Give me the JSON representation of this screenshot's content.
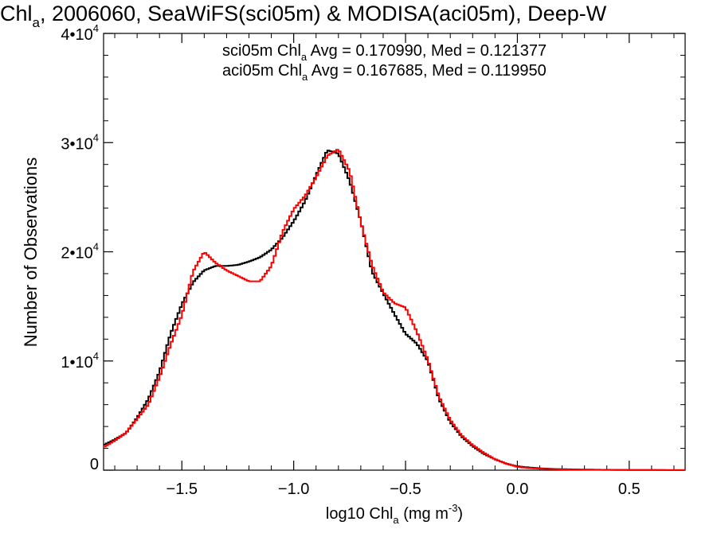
{
  "chart_data": {
    "type": "line",
    "title": {
      "pre": "Chl",
      "sub": "a",
      "post": ", 2006060, SeaWiFS(sci05m) & MODISA(aci05m), Deep-W"
    },
    "xlabel": {
      "pre": "log10 Chl",
      "sub": "a",
      "mid": " (mg m",
      "sup": "-3",
      "post": ")"
    },
    "ylabel": "Number of Observations",
    "xlim": [
      -1.85,
      0.75
    ],
    "ylim": [
      0,
      40000
    ],
    "x_ticks": [
      {
        "value": -1.5,
        "label": "−1.5"
      },
      {
        "value": -1.0,
        "label": "−1.0"
      },
      {
        "value": -0.5,
        "label": "−0.5"
      },
      {
        "value": 0.0,
        "label": "0.0"
      },
      {
        "value": 0.5,
        "label": "0.5"
      }
    ],
    "y_ticks": [
      {
        "value": 0,
        "label": "0",
        "sup": ""
      },
      {
        "value": 10000,
        "label": "1•10",
        "sup": "4"
      },
      {
        "value": 20000,
        "label": "2•10",
        "sup": "4"
      },
      {
        "value": 30000,
        "label": "3•10",
        "sup": "4"
      },
      {
        "value": 40000,
        "label": "4•10",
        "sup": "4"
      }
    ],
    "annotations": [
      {
        "pre": "sci05m Chl",
        "sub": "a",
        "post": " Avg = 0.170990, Med = 0.121377",
        "color": "#000000"
      },
      {
        "pre": "aci05m Chl",
        "sub": "a",
        "post": " Avg = 0.167685, Med = 0.119950",
        "color": "#ff0000"
      }
    ],
    "series": [
      {
        "color": "#000000",
        "x": [
          -1.85,
          -1.8,
          -1.75,
          -1.7,
          -1.65,
          -1.6,
          -1.55,
          -1.5,
          -1.45,
          -1.4,
          -1.35,
          -1.3,
          -1.25,
          -1.2,
          -1.15,
          -1.1,
          -1.05,
          -1.0,
          -0.95,
          -0.9,
          -0.85,
          -0.8,
          -0.75,
          -0.7,
          -0.65,
          -0.6,
          -0.55,
          -0.5,
          -0.45,
          -0.4,
          -0.35,
          -0.3,
          -0.25,
          -0.2,
          -0.15,
          -0.1,
          -0.05,
          0.0,
          0.05,
          0.1,
          0.15,
          0.2,
          0.3,
          0.4,
          0.5,
          0.6,
          0.75
        ],
        "y": [
          2300,
          2800,
          3400,
          4800,
          6500,
          9000,
          12500,
          15200,
          17200,
          18300,
          18700,
          18700,
          18800,
          19100,
          19500,
          20200,
          21300,
          22800,
          24600,
          27000,
          29300,
          29000,
          26500,
          22800,
          18200,
          16200,
          14300,
          12500,
          11600,
          10000,
          6500,
          4400,
          3100,
          2200,
          1500,
          1000,
          600,
          350,
          250,
          170,
          120,
          90,
          55,
          35,
          25,
          15,
          5
        ]
      },
      {
        "color": "#ff0000",
        "x": [
          -1.85,
          -1.8,
          -1.75,
          -1.7,
          -1.65,
          -1.6,
          -1.55,
          -1.5,
          -1.45,
          -1.4,
          -1.35,
          -1.3,
          -1.25,
          -1.2,
          -1.15,
          -1.1,
          -1.05,
          -1.0,
          -0.95,
          -0.9,
          -0.85,
          -0.8,
          -0.75,
          -0.7,
          -0.65,
          -0.6,
          -0.55,
          -0.5,
          -0.45,
          -0.4,
          -0.35,
          -0.3,
          -0.25,
          -0.2,
          -0.15,
          -0.1,
          -0.05,
          0.0,
          0.05,
          0.1,
          0.15,
          0.2,
          0.3,
          0.4,
          0.5,
          0.6,
          0.75
        ],
        "y": [
          2100,
          2700,
          3400,
          4700,
          6000,
          8500,
          11500,
          14200,
          18200,
          20000,
          19000,
          18300,
          17800,
          17300,
          17300,
          18700,
          21800,
          23900,
          25100,
          26800,
          28800,
          29400,
          27400,
          22700,
          18800,
          16300,
          15300,
          14900,
          12700,
          10100,
          6700,
          4600,
          3200,
          2300,
          1600,
          1000,
          600,
          300,
          200,
          140,
          100,
          70,
          45,
          30,
          20,
          12,
          4
        ]
      }
    ]
  }
}
